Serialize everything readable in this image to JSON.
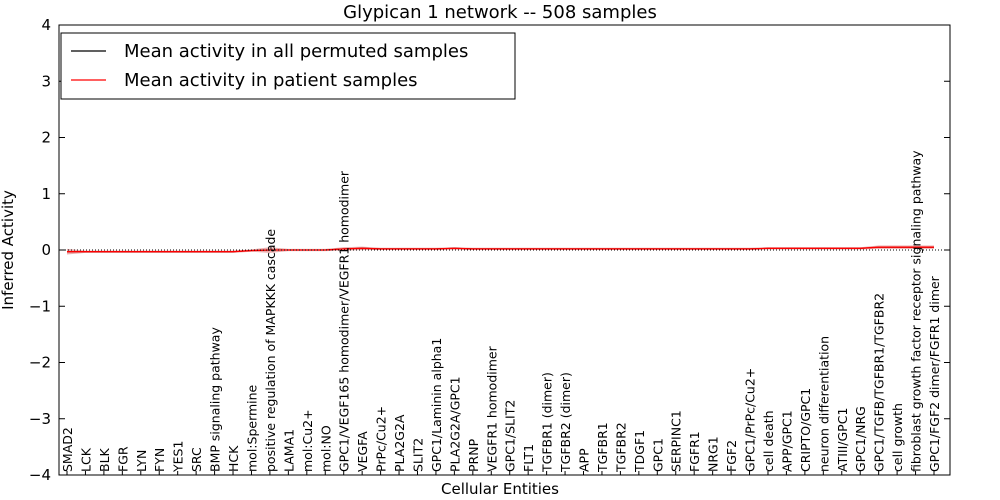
{
  "chart_data": {
    "type": "line",
    "title": "Glypican 1 network -- 508 samples",
    "xlabel": "Cellular Entities",
    "ylabel": "Inferred Activity",
    "ylim": [
      -4,
      4
    ],
    "yticks": [
      -4,
      -3,
      -2,
      -1,
      0,
      1,
      2,
      3,
      4
    ],
    "ytick_labels": [
      "−4",
      "−3",
      "−2",
      "−1",
      "0",
      "1",
      "2",
      "3",
      "4"
    ],
    "grid": false,
    "legend_position": "top-left",
    "categories": [
      "SMAD2",
      "LCK",
      "BLK",
      "FGR",
      "LYN",
      "FYN",
      "YES1",
      "SRC",
      "BMP signaling pathway",
      "HCK",
      "mol:Spermine",
      "positive regulation of MAPKKK cascade",
      "LAMA1",
      "mol:Cu2+",
      "mol:NO",
      "GPC1/VEGF165 homodimer/VEGFR1 homodimer",
      "VEGFA",
      "PrPc/Cu2+",
      "PLA2G2A",
      "SLIT2",
      "GPC1/Laminin alpha1",
      "PLA2G2A/GPC1",
      "PRNP",
      "VEGFR1 homodimer",
      "GPC1/SLIT2",
      "FLT1",
      "TGFBR1 (dimer)",
      "TGFBR2 (dimer)",
      "APP",
      "TGFBR1",
      "TGFBR2",
      "TDGF1",
      "GPC1",
      "SERPINC1",
      "FGFR1",
      "NRG1",
      "FGF2",
      "GPC1/PrPc/Cu2+",
      "cell death",
      "APP/GPC1",
      "CRIPTO/GPC1",
      "neuron differentiation",
      "ATIII/GPC1",
      "GPC1/NRG",
      "GPC1/TGFB/TGFBR1/TGFBR2",
      "cell growth",
      "fibroblast growth factor receptor signaling pathway",
      "GPC1/FGF2 dimer/FGFR1 dimer"
    ],
    "series": [
      {
        "name": "Mean activity in all permuted samples",
        "color": "#000000",
        "values": [
          -0.03,
          -0.03,
          -0.03,
          -0.03,
          -0.03,
          -0.03,
          -0.03,
          -0.03,
          -0.03,
          -0.03,
          -0.01,
          0.0,
          0.0,
          0.0,
          0.0,
          0.02,
          0.03,
          0.02,
          0.02,
          0.02,
          0.02,
          0.03,
          0.02,
          0.02,
          0.02,
          0.02,
          0.02,
          0.02,
          0.02,
          0.02,
          0.02,
          0.02,
          0.02,
          0.02,
          0.02,
          0.02,
          0.02,
          0.02,
          0.03,
          0.03,
          0.03,
          0.03,
          0.03,
          0.03,
          0.05,
          0.05,
          0.05,
          0.05
        ]
      },
      {
        "name": "Mean activity in patient samples",
        "color": "#ff0000",
        "band_color": "#e8a0a0",
        "values": [
          -0.03,
          -0.03,
          -0.03,
          -0.03,
          -0.03,
          -0.03,
          -0.03,
          -0.03,
          -0.03,
          -0.03,
          -0.01,
          0.0,
          0.0,
          0.0,
          0.0,
          0.02,
          0.03,
          0.02,
          0.02,
          0.02,
          0.02,
          0.03,
          0.02,
          0.02,
          0.02,
          0.02,
          0.02,
          0.02,
          0.02,
          0.02,
          0.02,
          0.02,
          0.02,
          0.02,
          0.02,
          0.02,
          0.02,
          0.02,
          0.03,
          0.03,
          0.03,
          0.03,
          0.03,
          0.03,
          0.05,
          0.05,
          0.05,
          0.05
        ],
        "band_halfwidth": [
          0.05,
          0.02,
          0.02,
          0.02,
          0.02,
          0.02,
          0.02,
          0.02,
          0.02,
          0.02,
          0.02,
          0.05,
          0.02,
          0.02,
          0.02,
          0.03,
          0.03,
          0.02,
          0.02,
          0.02,
          0.02,
          0.02,
          0.02,
          0.02,
          0.02,
          0.02,
          0.02,
          0.02,
          0.02,
          0.02,
          0.02,
          0.02,
          0.02,
          0.02,
          0.02,
          0.02,
          0.02,
          0.02,
          0.02,
          0.02,
          0.02,
          0.02,
          0.02,
          0.02,
          0.03,
          0.03,
          0.03,
          0.03
        ]
      }
    ],
    "baseline": {
      "value": 0,
      "style": "dotted"
    }
  }
}
